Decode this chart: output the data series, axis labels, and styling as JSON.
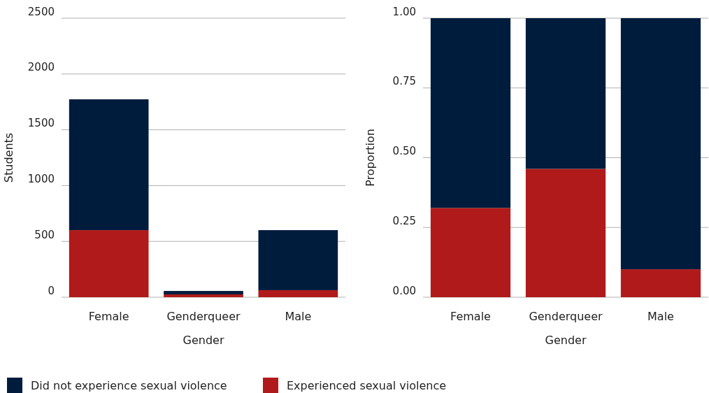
{
  "chart_data": [
    {
      "type": "bar",
      "stacked": true,
      "xlabel": "Gender",
      "ylabel": "Students",
      "categories": [
        "Female",
        "Genderqueer",
        "Male"
      ],
      "ylim": [
        0,
        2500
      ],
      "yticks": [
        0,
        500,
        1000,
        1500,
        2000,
        2500
      ],
      "grid": "y",
      "legend": "bottom",
      "series": [
        {
          "name": "Experienced sexual violence",
          "color": "#b01a1a",
          "values": [
            601,
            25,
            63
          ]
        },
        {
          "name": "Did not experience sexual violence",
          "color": "#001c3d",
          "values": [
            1172,
            31,
            538
          ]
        }
      ]
    },
    {
      "type": "bar",
      "stacked": true,
      "xlabel": "Gender",
      "ylabel": "Proportion",
      "categories": [
        "Female",
        "Genderqueer",
        "Male"
      ],
      "ylim": [
        0,
        1
      ],
      "yticks": [
        {
          "value": 0,
          "label": "0.00"
        },
        {
          "value": 0.25,
          "label": "0.25"
        },
        {
          "value": 0.5,
          "label": "0.50"
        },
        {
          "value": 0.75,
          "label": "0.75"
        },
        {
          "value": 1,
          "label": "1.00"
        }
      ],
      "grid": "y",
      "series": [
        {
          "color": "#b01a1a",
          "values": [
            0.32,
            0.46,
            0.1
          ]
        },
        {
          "color": "#001c3d",
          "values": [
            0.68,
            0.54,
            0.9
          ]
        }
      ]
    }
  ]
}
